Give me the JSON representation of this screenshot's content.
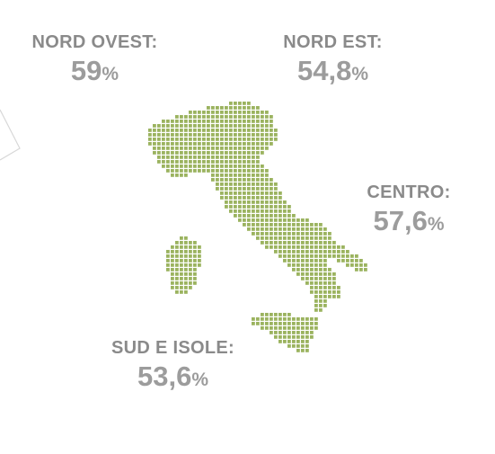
{
  "colors": {
    "map_dot": "#9bb35f",
    "label": "#8a8a8a",
    "value": "#9c9c9c"
  },
  "regions": [
    {
      "key": "nw",
      "name": "NORD OVEST:",
      "value": "59",
      "unit": "%"
    },
    {
      "key": "ne",
      "name": "NORD EST:",
      "value": "54,8",
      "unit": "%"
    },
    {
      "key": "c",
      "name": "CENTRO:",
      "value": "57,6",
      "unit": "%"
    },
    {
      "key": "s",
      "name": "SUD E ISOLE:",
      "value": "53,6",
      "unit": "%"
    }
  ]
}
